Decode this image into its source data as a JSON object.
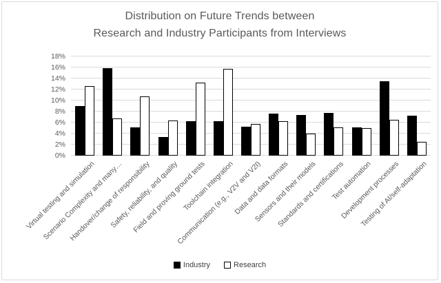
{
  "title": {
    "line1": "Distribution on Future Trends between",
    "line2": "Research and Industry Participants from Interviews"
  },
  "legend": {
    "industry": "Industry",
    "research": "Research"
  },
  "y_axis": {
    "tick_labels": [
      "0%",
      "2%",
      "4%",
      "6%",
      "8%",
      "10%",
      "12%",
      "14%",
      "16%",
      "18%"
    ],
    "min": 0,
    "max": 18,
    "step": 2,
    "unit": "%"
  },
  "colors": {
    "industry": "#000000",
    "research_fill": "#ffffff",
    "research_border": "#000000",
    "gridline": "#d9d9d9",
    "chart_border": "#d9d9d9",
    "text": "#595959"
  },
  "chart_data": {
    "type": "bar",
    "title": "Distribution on Future Trends between Research and Industry Participants from Interviews",
    "categories": [
      "Virtual testing and simulation",
      "Scenario Complexity and many…",
      "Handover/change of responsibility",
      "Safety, reliability, and quality",
      "Field and proving ground tests",
      "Toolchain integration",
      "Communication (e.g., V2V and V2I)",
      "Data and data formats",
      "Sensors and their models",
      "Standards and certifications",
      "Test automation",
      "Development processes",
      "Testing of AI/self-adaptation"
    ],
    "series": [
      {
        "name": "Industry",
        "style": "solid-black",
        "values": [
          9.0,
          15.9,
          5.1,
          3.4,
          6.2,
          6.2,
          5.2,
          7.6,
          7.4,
          7.7,
          5.1,
          13.5,
          7.2
        ]
      },
      {
        "name": "Research",
        "style": "white-outlined",
        "values": [
          12.6,
          6.8,
          10.8,
          6.4,
          13.2,
          15.7,
          5.8,
          6.2,
          4.0,
          5.1,
          5.0,
          6.5,
          2.5
        ]
      }
    ],
    "xlabel": "",
    "ylabel": "",
    "ylim": [
      0,
      18
    ],
    "ytick_step": 2,
    "unit": "%",
    "grid": true,
    "legend_position": "bottom",
    "x_label_rotation_deg": 45
  }
}
